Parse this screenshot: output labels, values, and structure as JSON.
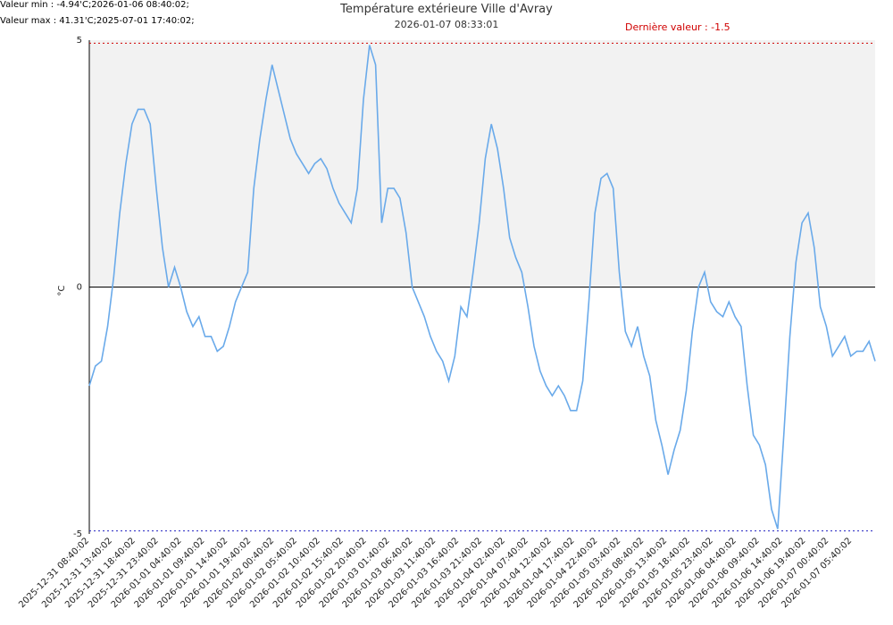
{
  "header": {
    "min_text": "Valeur min : -4.94'C;2026-01-06 08:40:02;",
    "max_text": "Valeur max : 41.31'C;2025-07-01 17:40:02;",
    "title": "Température extérieure Ville d'Avray",
    "subtitle": "2026-01-07 08:33:01",
    "last_value_text": "Dernière valeur : -1.5"
  },
  "colors": {
    "line": "#6aaaea",
    "plot_bg": "#f2f2f2",
    "max_ref": "#d00000",
    "min_ref": "#2020c0",
    "zero_line": "#000000"
  },
  "chart_data": {
    "type": "line",
    "title": "Température extérieure Ville d'Avray",
    "subtitle": "2026-01-07 08:33:01",
    "ylabel": "°C",
    "ylim": [
      -5,
      5
    ],
    "yticks": [
      5,
      0,
      -5
    ],
    "reference_lines": {
      "max": 4.94,
      "min": -4.94
    },
    "x_tick_labels": [
      "2025-12-31 08:40:02",
      "2025-12-31 13:40:02",
      "2025-12-31 18:40:02",
      "2025-12-31 23:40:02",
      "2026-01-01 04:40:02",
      "2026-01-01 09:40:02",
      "2026-01-01 14:40:02",
      "2026-01-01 19:40:02",
      "2026-01-02 00:40:02",
      "2026-01-02 05:40:02",
      "2026-01-02 10:40:02",
      "2026-01-02 15:40:02",
      "2026-01-02 20:40:02",
      "2026-01-03 01:40:02",
      "2026-01-03 06:40:02",
      "2026-01-03 11:40:02",
      "2026-01-03 16:40:02",
      "2026-01-03 21:40:02",
      "2026-01-04 02:40:02",
      "2026-01-04 07:40:02",
      "2026-01-04 12:40:02",
      "2026-01-04 17:40:02",
      "2026-01-04 22:40:02",
      "2026-01-05 03:40:02",
      "2026-01-05 08:40:02",
      "2026-01-05 13:40:02",
      "2026-01-05 18:40:02",
      "2026-01-05 23:40:02",
      "2026-01-06 04:40:02",
      "2026-01-06 09:40:02",
      "2026-01-06 14:40:02",
      "2026-01-06 19:40:02",
      "2026-01-07 00:40:02",
      "2026-01-07 05:40:02"
    ],
    "series": [
      {
        "points": [
          [
            0,
            -2.0
          ],
          [
            1,
            -1.6
          ],
          [
            2,
            -1.5
          ],
          [
            3,
            -0.8
          ],
          [
            4,
            0.2
          ],
          [
            5,
            1.5
          ],
          [
            6,
            2.5
          ],
          [
            7,
            3.3
          ],
          [
            8,
            3.6
          ],
          [
            9,
            3.6
          ],
          [
            10,
            3.3
          ],
          [
            11,
            2.0
          ],
          [
            12,
            0.8
          ],
          [
            13,
            0.0
          ],
          [
            14,
            0.4
          ],
          [
            15,
            0.0
          ],
          [
            16,
            -0.5
          ],
          [
            17,
            -0.8
          ],
          [
            18,
            -0.6
          ],
          [
            19,
            -1.0
          ],
          [
            20,
            -1.0
          ],
          [
            21,
            -1.3
          ],
          [
            22,
            -1.2
          ],
          [
            23,
            -0.8
          ],
          [
            24,
            -0.3
          ],
          [
            25,
            0.0
          ],
          [
            26,
            0.3
          ],
          [
            27,
            2.0
          ],
          [
            28,
            3.0
          ],
          [
            29,
            3.8
          ],
          [
            30,
            4.5
          ],
          [
            31,
            4.0
          ],
          [
            32,
            3.5
          ],
          [
            33,
            3.0
          ],
          [
            34,
            2.7
          ],
          [
            35,
            2.5
          ],
          [
            36,
            2.3
          ],
          [
            37,
            2.5
          ],
          [
            38,
            2.6
          ],
          [
            39,
            2.4
          ],
          [
            40,
            2.0
          ],
          [
            41,
            1.7
          ],
          [
            42,
            1.5
          ],
          [
            43,
            1.3
          ],
          [
            44,
            2.0
          ],
          [
            45,
            3.8
          ],
          [
            46,
            4.9
          ],
          [
            47,
            4.5
          ],
          [
            48,
            1.3
          ],
          [
            49,
            2.0
          ],
          [
            50,
            2.0
          ],
          [
            51,
            1.8
          ],
          [
            52,
            1.1
          ],
          [
            53,
            0.0
          ],
          [
            54,
            -0.3
          ],
          [
            55,
            -0.6
          ],
          [
            56,
            -1.0
          ],
          [
            57,
            -1.3
          ],
          [
            58,
            -1.5
          ],
          [
            59,
            -1.9
          ],
          [
            60,
            -1.4
          ],
          [
            61,
            -0.4
          ],
          [
            62,
            -0.6
          ],
          [
            63,
            0.3
          ],
          [
            64,
            1.3
          ],
          [
            65,
            2.6
          ],
          [
            66,
            3.3
          ],
          [
            67,
            2.8
          ],
          [
            68,
            2.0
          ],
          [
            69,
            1.0
          ],
          [
            70,
            0.6
          ],
          [
            71,
            0.3
          ],
          [
            72,
            -0.4
          ],
          [
            73,
            -1.2
          ],
          [
            74,
            -1.7
          ],
          [
            75,
            -2.0
          ],
          [
            76,
            -2.2
          ],
          [
            77,
            -2.0
          ],
          [
            78,
            -2.2
          ],
          [
            79,
            -2.5
          ],
          [
            80,
            -2.5
          ],
          [
            81,
            -1.9
          ],
          [
            82,
            -0.3
          ],
          [
            83,
            1.5
          ],
          [
            84,
            2.2
          ],
          [
            85,
            2.3
          ],
          [
            86,
            2.0
          ],
          [
            87,
            0.3
          ],
          [
            88,
            -0.9
          ],
          [
            89,
            -1.2
          ],
          [
            90,
            -0.8
          ],
          [
            91,
            -1.4
          ],
          [
            92,
            -1.8
          ],
          [
            93,
            -2.7
          ],
          [
            94,
            -3.2
          ],
          [
            95,
            -3.8
          ],
          [
            96,
            -3.3
          ],
          [
            97,
            -2.9
          ],
          [
            98,
            -2.1
          ],
          [
            99,
            -0.9
          ],
          [
            100,
            0.0
          ],
          [
            101,
            0.3
          ],
          [
            102,
            -0.3
          ],
          [
            103,
            -0.5
          ],
          [
            104,
            -0.6
          ],
          [
            105,
            -0.3
          ],
          [
            106,
            -0.6
          ],
          [
            107,
            -0.8
          ],
          [
            108,
            -2.0
          ],
          [
            109,
            -3.0
          ],
          [
            110,
            -3.2
          ],
          [
            111,
            -3.6
          ],
          [
            112,
            -4.5
          ],
          [
            113,
            -4.9
          ],
          [
            114,
            -3.0
          ],
          [
            115,
            -1.0
          ],
          [
            116,
            0.5
          ],
          [
            117,
            1.3
          ],
          [
            118,
            1.5
          ],
          [
            119,
            0.8
          ],
          [
            120,
            -0.4
          ],
          [
            121,
            -0.8
          ],
          [
            122,
            -1.4
          ],
          [
            123,
            -1.2
          ],
          [
            124,
            -1.0
          ],
          [
            125,
            -1.4
          ],
          [
            126,
            -1.3
          ],
          [
            127,
            -1.3
          ],
          [
            128,
            -1.1
          ],
          [
            129,
            -1.5
          ]
        ]
      }
    ]
  }
}
